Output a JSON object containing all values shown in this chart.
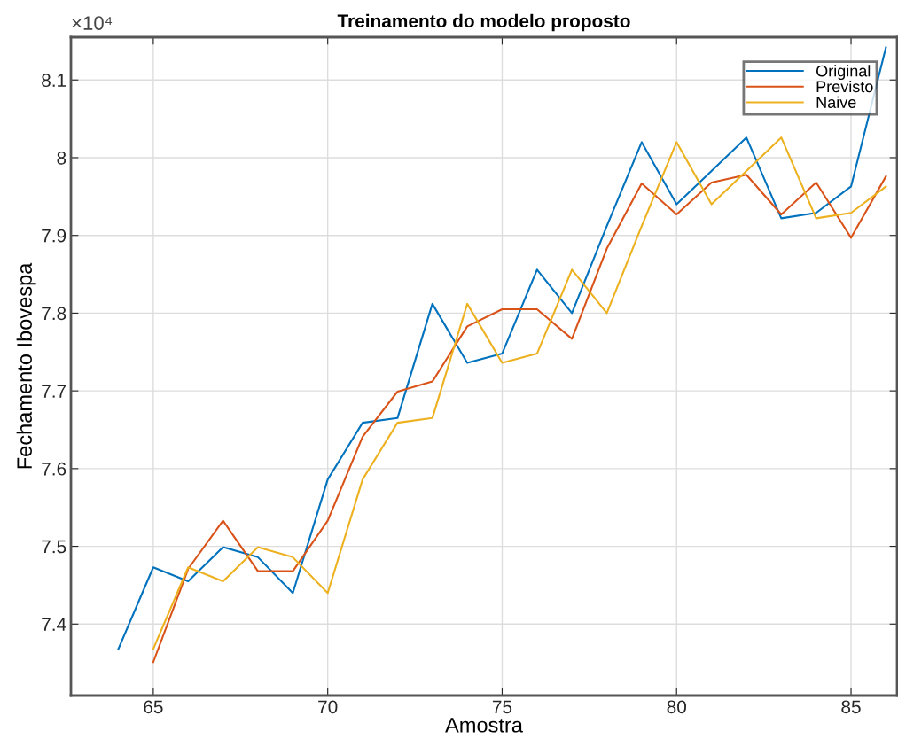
{
  "chart_data": {
    "type": "line",
    "title": "Treinamento do modelo proposto",
    "xlabel": "Amostra",
    "ylabel": "Fechamento Ibovespa",
    "annotations": [
      "×10⁴"
    ],
    "x": [
      64,
      65,
      66,
      67,
      68,
      69,
      70,
      71,
      72,
      73,
      74,
      75,
      76,
      77,
      78,
      79,
      80,
      81,
      82,
      83,
      84,
      85,
      86
    ],
    "series": [
      {
        "name": "Original",
        "color": "#0072bd",
        "values": [
          7.368,
          7.473,
          7.455,
          7.499,
          7.486,
          7.44,
          7.586,
          7.659,
          7.665,
          7.812,
          7.736,
          7.748,
          7.856,
          7.8,
          7.912,
          8.02,
          7.94,
          7.983,
          8.026,
          7.922,
          7.929,
          7.963,
          8.142
        ]
      },
      {
        "name": "Previsto",
        "color": "#d95319",
        "values": [
          null,
          7.351,
          7.471,
          7.533,
          7.468,
          7.468,
          7.533,
          7.641,
          7.699,
          7.712,
          7.783,
          7.805,
          7.805,
          7.767,
          7.883,
          7.967,
          7.927,
          7.968,
          7.978,
          7.927,
          7.968,
          7.897,
          7.976
        ]
      },
      {
        "name": "Naive",
        "color": "#edb120",
        "values": [
          null,
          7.368,
          7.473,
          7.455,
          7.499,
          7.486,
          7.44,
          7.586,
          7.659,
          7.665,
          7.812,
          7.736,
          7.748,
          7.856,
          7.8,
          7.912,
          8.02,
          7.94,
          7.983,
          8.026,
          7.922,
          7.929,
          7.963
        ]
      }
    ],
    "xlim": [
      62.64,
      86.32
    ],
    "ylim": [
      7.308,
      8.155
    ],
    "xticks": [
      65,
      70,
      75,
      80,
      85
    ],
    "yticks": [
      7.4,
      7.5,
      7.6,
      7.7,
      7.8,
      7.9,
      8,
      8.1
    ],
    "grid": true,
    "legend": "top right",
    "line_style": "solid",
    "marker": "none"
  }
}
